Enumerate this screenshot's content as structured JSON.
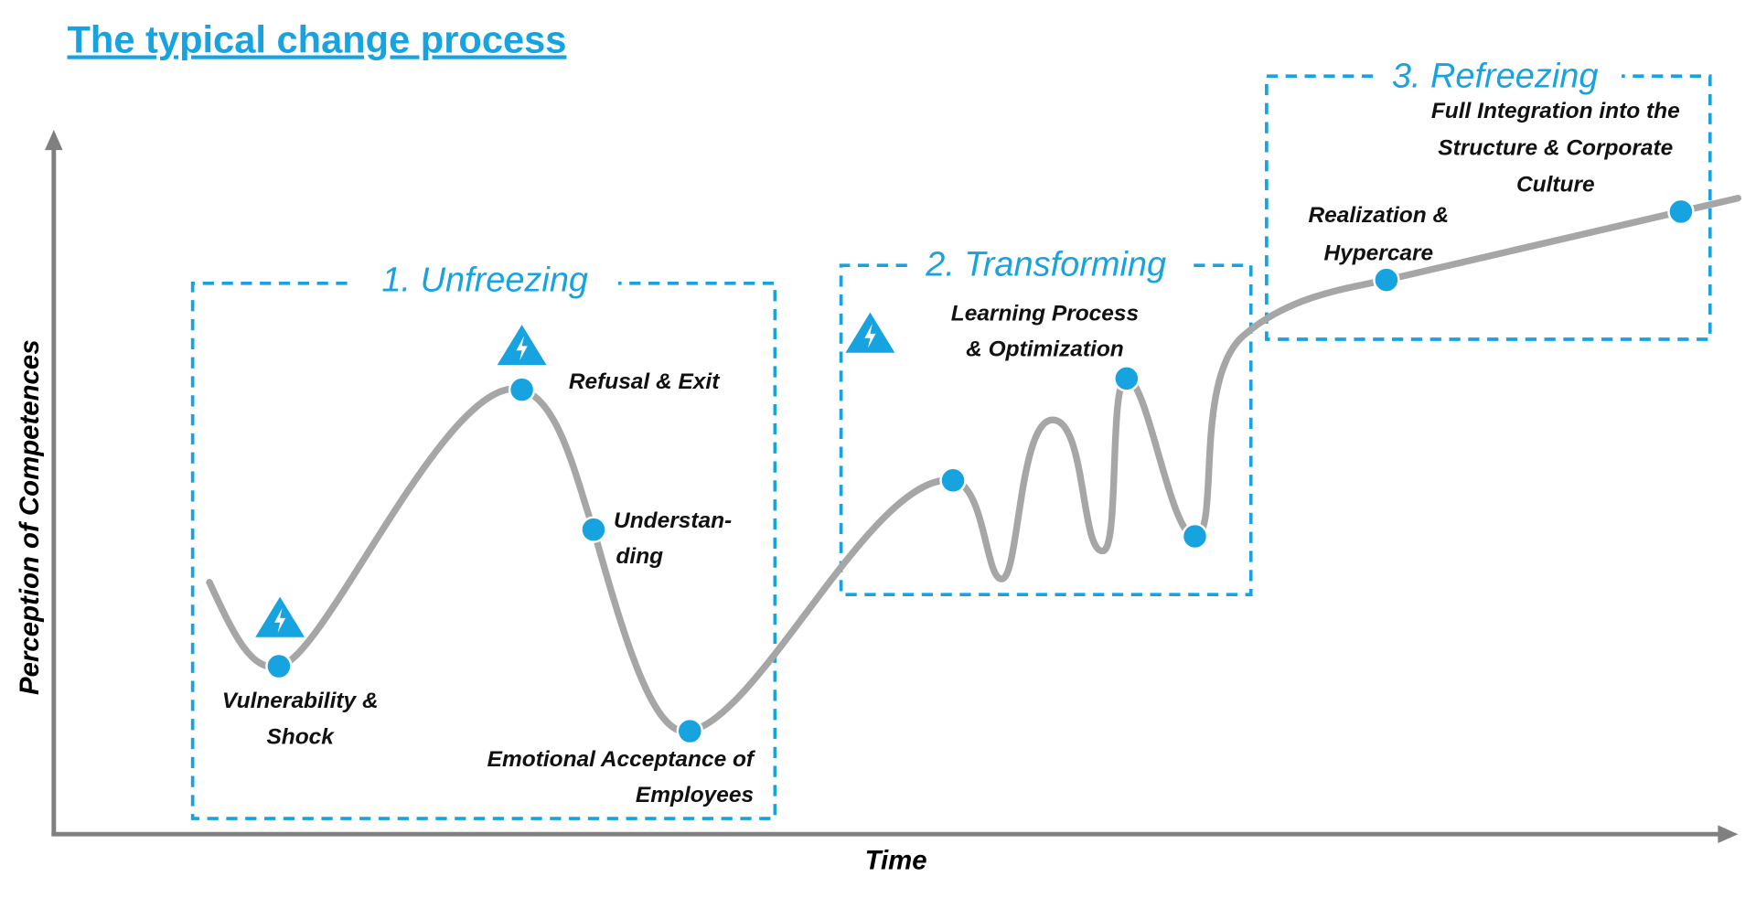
{
  "title": "The typical change process",
  "axes": {
    "y_label": "Perception of Competences",
    "x_label": "Time"
  },
  "phases": [
    {
      "label": "1. Unfreezing"
    },
    {
      "label": "2. Transforming"
    },
    {
      "label": "3. Refreezing"
    }
  ],
  "stages": [
    {
      "lines": [
        "Vulnerability &",
        "Shock"
      ]
    },
    {
      "lines": [
        "Refusal & Exit"
      ]
    },
    {
      "lines": [
        "Understan-",
        "ding"
      ]
    },
    {
      "lines": [
        "Emotional Acceptance of",
        "Employees"
      ]
    },
    {
      "lines": [
        "Learning Process",
        "& Optimization"
      ]
    },
    {
      "lines": [
        "Realization &",
        "Hypercare"
      ]
    },
    {
      "lines": [
        "Full Integration into the",
        "Structure & Corporate",
        "Culture"
      ]
    }
  ]
}
